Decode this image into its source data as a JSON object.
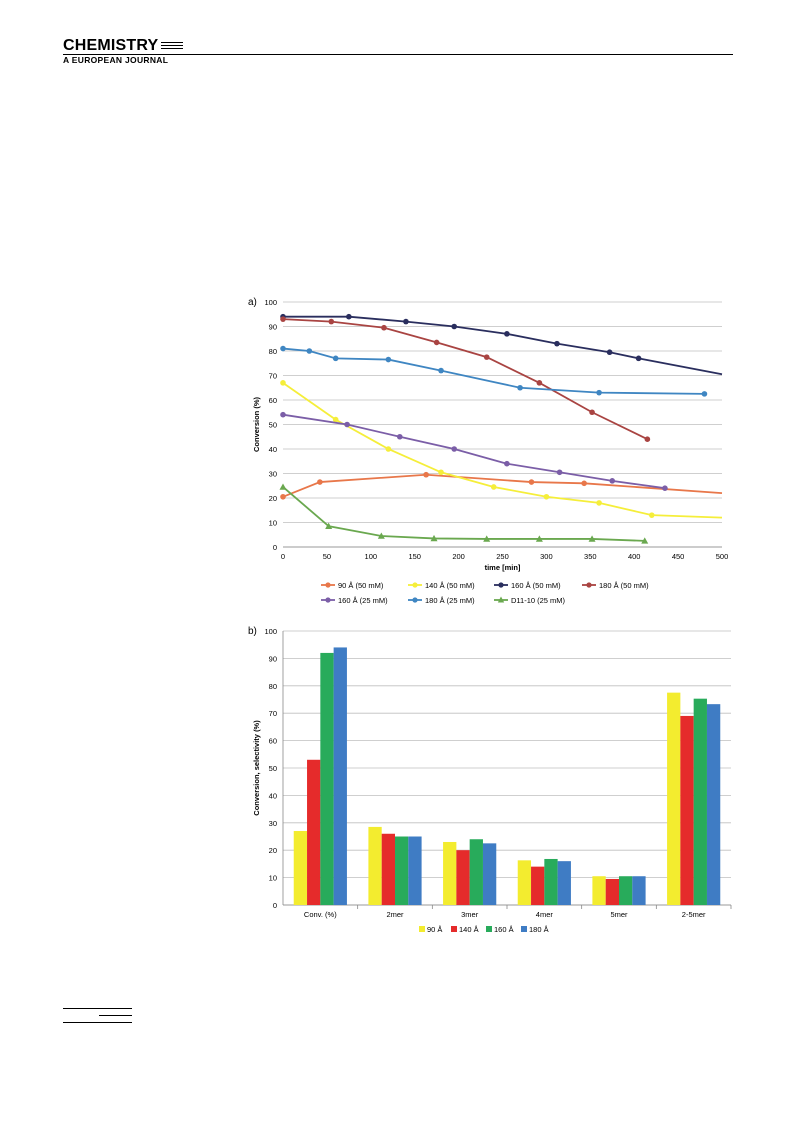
{
  "header": {
    "journal_title": "CHEMISTRY",
    "journal_subtitle": "A EUROPEAN JOURNAL"
  },
  "chart_data": [
    {
      "type": "line",
      "panel_label": "a)",
      "xlabel": "time [min]",
      "ylabel": "Conversion  (%)",
      "xlim": [
        0,
        500
      ],
      "ylim": [
        0,
        100
      ],
      "xticks": [
        0,
        50,
        100,
        150,
        200,
        250,
        300,
        350,
        400,
        450,
        500
      ],
      "yticks": [
        0,
        10,
        20,
        30,
        40,
        50,
        60,
        70,
        80,
        90,
        100
      ],
      "grid": "horizontal",
      "legend_position": "bottom",
      "series": [
        {
          "name": "90 Å (50 mM)",
          "color": "#e8774a",
          "marker": "circle",
          "x": [
            0,
            42,
            163,
            283,
            343,
            500
          ],
          "y": [
            20.5,
            26.5,
            29.5,
            26.5,
            26,
            22
          ]
        },
        {
          "name": "140 Å (50 mM)",
          "color": "#f5ee3a",
          "marker": "circle",
          "x": [
            0,
            60,
            120,
            180,
            240,
            300,
            360,
            420,
            500
          ],
          "y": [
            67,
            52,
            40,
            30.5,
            24.5,
            20.5,
            18,
            13,
            12
          ]
        },
        {
          "name": "160 Å (50 mM)",
          "color": "#2a2e5e",
          "marker": "circle",
          "x": [
            0,
            75,
            140,
            195,
            255,
            312,
            372,
            405,
            500
          ],
          "y": [
            94,
            94,
            92,
            90,
            87,
            83,
            79.5,
            77,
            70.5
          ]
        },
        {
          "name": "180 Å (50 mM)",
          "color": "#a94442",
          "marker": "circle",
          "x": [
            0,
            55,
            115,
            175,
            232,
            292,
            352,
            415
          ],
          "y": [
            93,
            92,
            89.5,
            83.5,
            77.5,
            67,
            55,
            44
          ]
        },
        {
          "name": "160 Å (25 mM)",
          "color": "#7b5ea7",
          "marker": "circle",
          "x": [
            0,
            73,
            133,
            195,
            255,
            315,
            375,
            435
          ],
          "y": [
            54,
            50,
            45,
            40,
            34,
            30.5,
            27,
            24
          ]
        },
        {
          "name": "180 Å (25 mM)",
          "color": "#3f86c2",
          "marker": "circle",
          "x": [
            0,
            30,
            60,
            120,
            180,
            270,
            360,
            480
          ],
          "y": [
            81,
            80,
            77,
            76.5,
            72,
            65,
            63,
            62.5
          ]
        },
        {
          "name": "D11-10 (25 mM)",
          "color": "#6aa84f",
          "marker": "triangle",
          "x": [
            0,
            52,
            112,
            172,
            232,
            292,
            352,
            412
          ],
          "y": [
            24.5,
            8.5,
            4.5,
            3.5,
            3.3,
            3.3,
            3.3,
            2.5
          ]
        }
      ]
    },
    {
      "type": "bar",
      "panel_label": "b)",
      "xlabel": "",
      "ylabel": "Conversion, selectivity (%)",
      "ylim": [
        0,
        100
      ],
      "yticks": [
        0,
        10,
        20,
        30,
        40,
        50,
        60,
        70,
        80,
        90,
        100
      ],
      "grid": "horizontal",
      "legend_position": "bottom",
      "categories": [
        "Conv. (%)",
        "2mer",
        "3mer",
        "4mer",
        "5mer",
        "2-5mer"
      ],
      "series": [
        {
          "name": "90 Å",
          "color": "#f3ec2f",
          "values": [
            27,
            28.5,
            23,
            16.3,
            10.5,
            77.5
          ]
        },
        {
          "name": "140 Å",
          "color": "#e52b2b",
          "values": [
            53,
            26,
            20,
            14,
            9.5,
            69
          ]
        },
        {
          "name": "160 Å",
          "color": "#28ab5b",
          "values": [
            92,
            25,
            24,
            16.8,
            10.5,
            75.3
          ]
        },
        {
          "name": "180 Å",
          "color": "#3f7cc4",
          "values": [
            94,
            25,
            22.5,
            16,
            10.5,
            73.3
          ]
        }
      ]
    }
  ]
}
